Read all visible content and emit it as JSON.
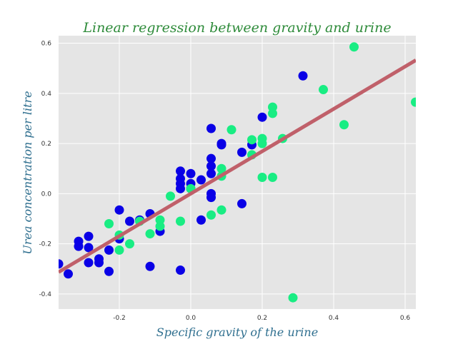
{
  "chart_data": {
    "type": "scatter",
    "title": "Linear regression between gravity and urine",
    "xlabel": "Specific gravity of the urine",
    "ylabel": "Urea concentration per litre",
    "xlim": [
      -0.37,
      0.63
    ],
    "ylim": [
      -0.46,
      0.63
    ],
    "xticks": [
      -0.2,
      0.0,
      0.2,
      0.4,
      0.6
    ],
    "yticks": [
      -0.4,
      -0.2,
      0.0,
      0.2,
      0.4,
      0.6
    ],
    "xtick_labels": [
      "-0.2",
      "0.0",
      "0.2",
      "0.4",
      "0.6"
    ],
    "ytick_labels": [
      "-0.4",
      "-0.2",
      "0.0",
      "0.2",
      "0.4",
      "0.6"
    ],
    "grid": true,
    "background_color": "#e5e5e5",
    "series": [
      {
        "color": "#0a00e6",
        "points": [
          [
            -0.37,
            -0.28
          ],
          [
            -0.343,
            -0.32
          ],
          [
            -0.314,
            -0.19
          ],
          [
            -0.314,
            -0.21
          ],
          [
            -0.286,
            -0.17
          ],
          [
            -0.286,
            -0.215
          ],
          [
            -0.286,
            -0.275
          ],
          [
            -0.257,
            -0.26
          ],
          [
            -0.257,
            -0.275
          ],
          [
            -0.229,
            -0.225
          ],
          [
            -0.229,
            -0.31
          ],
          [
            -0.2,
            -0.065
          ],
          [
            -0.2,
            -0.18
          ],
          [
            -0.171,
            -0.11
          ],
          [
            -0.143,
            -0.105
          ],
          [
            -0.114,
            -0.08
          ],
          [
            -0.114,
            -0.29
          ],
          [
            -0.086,
            -0.15
          ],
          [
            -0.029,
            0.09
          ],
          [
            -0.029,
            0.06
          ],
          [
            -0.029,
            0.04
          ],
          [
            -0.029,
            0.02
          ],
          [
            -0.029,
            -0.305
          ],
          [
            0.0,
            0.08
          ],
          [
            0.0,
            0.04
          ],
          [
            0.0,
            0.02
          ],
          [
            0.029,
            0.055
          ],
          [
            0.029,
            -0.105
          ],
          [
            0.057,
            0.26
          ],
          [
            0.057,
            0.14
          ],
          [
            0.057,
            0.11
          ],
          [
            0.057,
            0.08
          ],
          [
            0.057,
            0.0
          ],
          [
            0.057,
            -0.015
          ],
          [
            0.086,
            0.2
          ],
          [
            0.086,
            0.195
          ],
          [
            0.143,
            0.165
          ],
          [
            0.143,
            -0.04
          ],
          [
            0.171,
            0.195
          ],
          [
            0.2,
            0.305
          ],
          [
            0.314,
            0.47
          ]
        ]
      },
      {
        "color": "#19ed83",
        "points": [
          [
            -0.229,
            -0.12
          ],
          [
            -0.2,
            -0.165
          ],
          [
            -0.2,
            -0.225
          ],
          [
            -0.171,
            -0.2
          ],
          [
            -0.143,
            -0.11
          ],
          [
            -0.114,
            -0.16
          ],
          [
            -0.086,
            -0.105
          ],
          [
            -0.086,
            -0.13
          ],
          [
            -0.057,
            -0.01
          ],
          [
            -0.029,
            -0.11
          ],
          [
            0.0,
            0.02
          ],
          [
            0.057,
            -0.085
          ],
          [
            0.086,
            0.1
          ],
          [
            0.086,
            0.07
          ],
          [
            0.086,
            -0.065
          ],
          [
            0.114,
            0.255
          ],
          [
            0.171,
            0.215
          ],
          [
            0.171,
            0.155
          ],
          [
            0.2,
            0.22
          ],
          [
            0.2,
            0.2
          ],
          [
            0.2,
            0.065
          ],
          [
            0.229,
            0.345
          ],
          [
            0.229,
            0.32
          ],
          [
            0.229,
            0.065
          ],
          [
            0.257,
            0.22
          ],
          [
            0.286,
            -0.415
          ],
          [
            0.371,
            0.415
          ],
          [
            0.429,
            0.275
          ],
          [
            0.457,
            0.585
          ],
          [
            0.629,
            0.365
          ]
        ]
      }
    ],
    "regression_line": {
      "color": "#c0606a",
      "intercept": 0.0,
      "slope": 0.845
    }
  }
}
